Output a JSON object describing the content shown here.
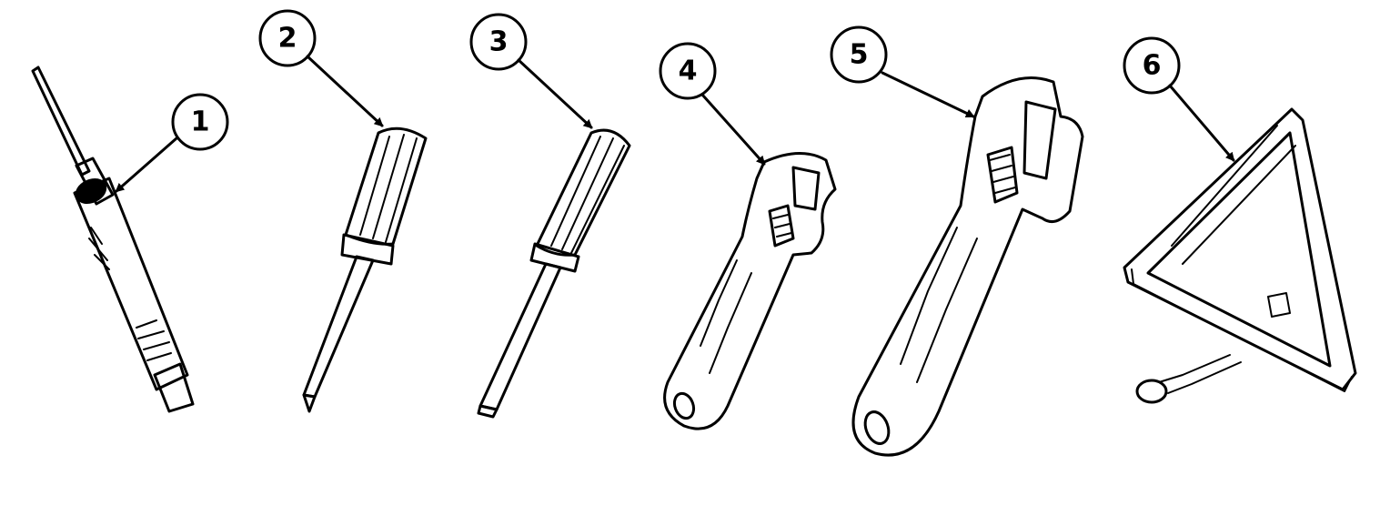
{
  "figure": {
    "background": "#ffffff",
    "ink_color": "#000000"
  },
  "callouts": [
    {
      "number": "1",
      "item": "brush-pen-tool"
    },
    {
      "number": "2",
      "item": "phillips-screwdriver"
    },
    {
      "number": "3",
      "item": "flat-screwdriver"
    },
    {
      "number": "4",
      "item": "small-adjustable-wrench"
    },
    {
      "number": "5",
      "item": "large-adjustable-wrench"
    },
    {
      "number": "6",
      "item": "warning-triangle"
    }
  ]
}
